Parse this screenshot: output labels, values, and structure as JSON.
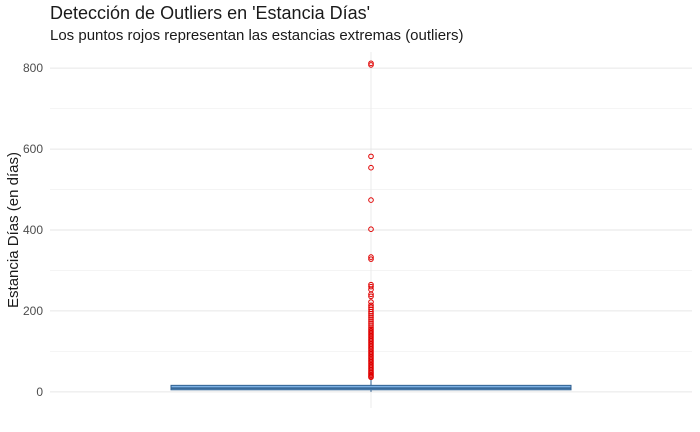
{
  "chart_data": {
    "type": "box",
    "title": "Detección de Outliers en 'Estancia Días'",
    "subtitle": "Los puntos rojos representan las estancias extremas (outliers)",
    "ylabel": "Estancia Días (en días)",
    "xlabel": "",
    "ylim": [
      -40,
      840
    ],
    "yticks": [
      0,
      200,
      400,
      600,
      800
    ],
    "grid": true,
    "box": {
      "q1": 5,
      "median": 9,
      "q3": 16,
      "whisker_low": 0,
      "whisker_high": 33,
      "fill": "#7fb2e5",
      "stroke": "#2f5f8f"
    },
    "outliers": [
      812,
      808,
      582,
      554,
      474,
      402,
      333,
      328,
      265,
      260,
      253,
      241,
      236,
      222,
      214,
      209,
      204,
      198,
      193,
      188,
      183,
      178,
      173,
      168,
      163,
      158,
      154,
      150,
      146,
      142,
      138,
      134,
      130,
      126,
      122,
      118,
      114,
      110,
      106,
      102,
      98,
      94,
      90,
      86,
      82,
      78,
      74,
      70,
      66,
      62,
      58,
      54,
      50,
      47,
      44,
      41,
      38,
      36
    ],
    "outlier_color": "#e00000"
  }
}
